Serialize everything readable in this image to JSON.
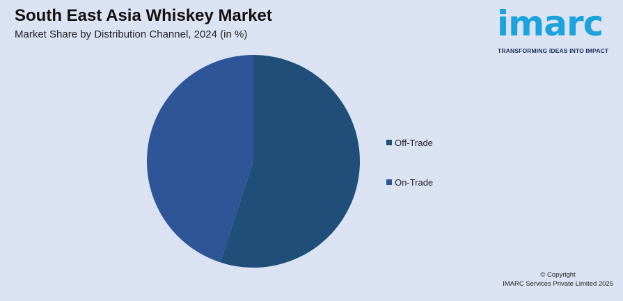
{
  "title": "South East Asia Whiskey Market",
  "subtitle": "Market Share by Distribution Channel, 2024 (in %)",
  "logo": {
    "word": "imarc",
    "tagline": "TRANSFORMING IDEAS INTO IMPACT"
  },
  "copyright": {
    "line1": "© Copyright",
    "line2": "IMARC Services Private Limited 2025"
  },
  "colors": {
    "background": "#dbe3f3",
    "off_trade": "#1f4e79",
    "on_trade": "#2e5597",
    "logo": "#1aa3dc"
  },
  "chart_data": {
    "type": "pie",
    "title": "South East Asia Whiskey Market",
    "subtitle": "Market Share by Distribution Channel, 2024 (in %)",
    "categories": [
      "Off-Trade",
      "On-Trade"
    ],
    "values": [
      55,
      45
    ],
    "colors": [
      "#1f4e79",
      "#2e5597"
    ],
    "start_angle_deg": 0,
    "direction": "clockwise",
    "legend_position": "right",
    "data_labels": false
  }
}
